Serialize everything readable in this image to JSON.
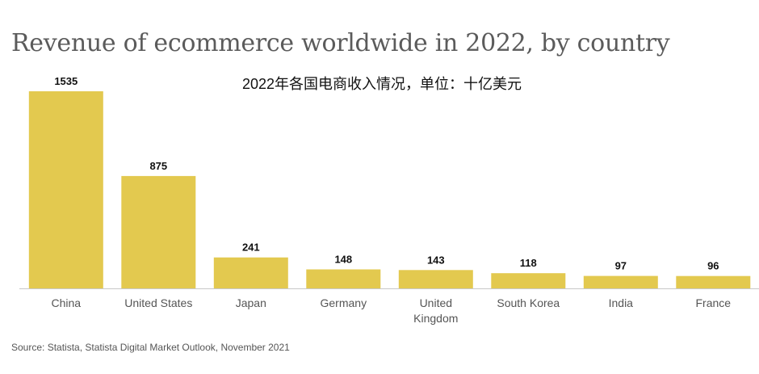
{
  "chart_data": {
    "type": "bar",
    "title": "Revenue of ecommerce worldwide in 2022, by country",
    "subtitle": "2022年各国电商收入情况，单位：十亿美元",
    "categories": [
      "China",
      "United States",
      "Japan",
      "Germany",
      "United Kingdom",
      "South Korea",
      "India",
      "France"
    ],
    "category_lines": [
      [
        "China"
      ],
      [
        "United States"
      ],
      [
        "Japan"
      ],
      [
        "Germany"
      ],
      [
        "United",
        "Kingdom"
      ],
      [
        "South Korea"
      ],
      [
        "India"
      ],
      [
        "France"
      ]
    ],
    "values": [
      1535,
      875,
      241,
      148,
      143,
      118,
      97,
      96
    ],
    "value_labels": [
      "1535",
      "875",
      "241",
      "148",
      "143",
      "118",
      "97",
      "96"
    ],
    "xlabel": "",
    "ylabel": "",
    "ylim": [
      0,
      1535
    ],
    "grid": false,
    "legend": "none",
    "source": "Source: Statista, Statista Digital Market Outlook, November 2021",
    "colors": {
      "bar": "#e3c94f",
      "axis": "#c8c8c8",
      "value_label": "#111111",
      "category_label": "#555555"
    }
  }
}
